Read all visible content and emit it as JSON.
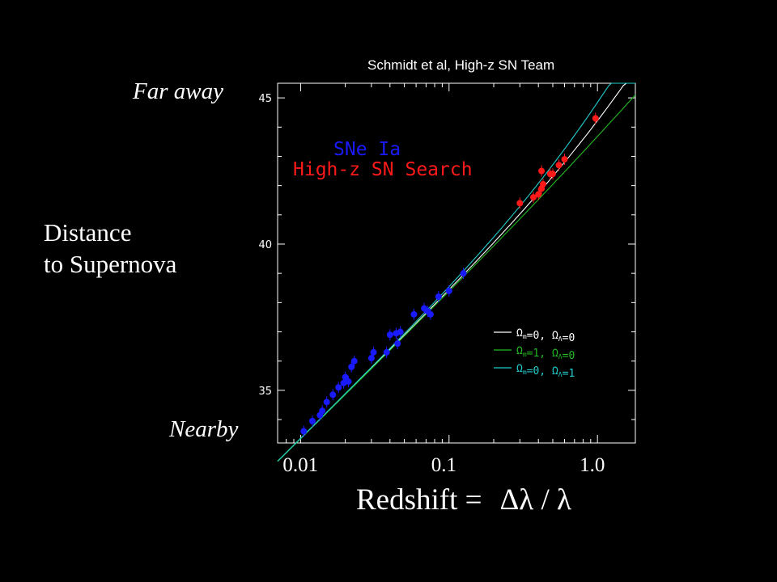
{
  "credit": "Schmidt et al, High-z SN Team",
  "labels": {
    "far": "Far away",
    "near": "Nearby",
    "ylabel_line1": "Distance",
    "ylabel_line2": "to Supernova",
    "xlabel_text": "Redshift =",
    "xlabel_formula": "Δλ / λ"
  },
  "chart_data": {
    "type": "scatter",
    "xscale": "log",
    "xlim": [
      0.007,
      1.8
    ],
    "ylim": [
      33.2,
      45.5
    ],
    "xticks": [
      {
        "value": 0.01,
        "label": "0.01"
      },
      {
        "value": 0.1,
        "label": "0.1"
      },
      {
        "value": 1.0,
        "label": "1.0"
      }
    ],
    "yticks": [
      {
        "value": 35,
        "label": "35"
      },
      {
        "value": 40,
        "label": "40"
      },
      {
        "value": 45,
        "label": "45"
      }
    ],
    "title_lines": [
      {
        "text": "SNe Ia",
        "color": "#1a1aff"
      },
      {
        "text": "High-z SN Search",
        "color": "#ff1a1a"
      }
    ],
    "series": [
      {
        "name": "SNe Ia",
        "color": "#1a1aff",
        "points": [
          [
            0.0105,
            33.6
          ],
          [
            0.012,
            33.95
          ],
          [
            0.0135,
            34.15
          ],
          [
            0.014,
            34.3
          ],
          [
            0.015,
            34.6
          ],
          [
            0.0165,
            34.85
          ],
          [
            0.018,
            35.1
          ],
          [
            0.0195,
            35.25
          ],
          [
            0.02,
            35.45
          ],
          [
            0.021,
            35.3
          ],
          [
            0.022,
            35.8
          ],
          [
            0.023,
            36.0
          ],
          [
            0.03,
            36.1
          ],
          [
            0.031,
            36.3
          ],
          [
            0.038,
            36.3
          ],
          [
            0.04,
            36.9
          ],
          [
            0.044,
            36.95
          ],
          [
            0.045,
            36.6
          ],
          [
            0.047,
            37.0
          ],
          [
            0.058,
            37.6
          ],
          [
            0.068,
            37.8
          ],
          [
            0.072,
            37.7
          ],
          [
            0.075,
            37.6
          ],
          [
            0.085,
            38.2
          ],
          [
            0.1,
            38.4
          ],
          [
            0.125,
            39.0
          ]
        ]
      },
      {
        "name": "High-z SN Search",
        "color": "#ff1a1a",
        "points": [
          [
            0.3,
            41.4
          ],
          [
            0.37,
            41.6
          ],
          [
            0.4,
            41.7
          ],
          [
            0.42,
            41.9
          ],
          [
            0.43,
            42.05
          ],
          [
            0.42,
            42.5
          ],
          [
            0.48,
            42.4
          ],
          [
            0.5,
            42.4
          ],
          [
            0.55,
            42.7
          ],
          [
            0.6,
            42.9
          ],
          [
            0.97,
            44.3
          ]
        ]
      }
    ],
    "models": [
      {
        "label_prefix": "Ω",
        "label_m": "m",
        "value_m": "=0,",
        "label_l": "Ω",
        "value_l": "Λ",
        "value_l_eq": "=0",
        "color": "#ffffff",
        "omega_m": 0,
        "omega_l": 0
      },
      {
        "label_prefix": "Ω",
        "label_m": "m",
        "value_m": "=1,",
        "label_l": "Ω",
        "value_l": "Λ",
        "value_l_eq": "=0",
        "color": "#22bb22",
        "omega_m": 1,
        "omega_l": 0
      },
      {
        "label_prefix": "Ω",
        "label_m": "m",
        "value_m": "=0,",
        "label_l": "Ω",
        "value_l": "Λ",
        "value_l_eq": "=1",
        "color": "#22cccc",
        "omega_m": 0,
        "omega_l": 1
      }
    ],
    "legend_position": "lower-right",
    "grid": false
  }
}
